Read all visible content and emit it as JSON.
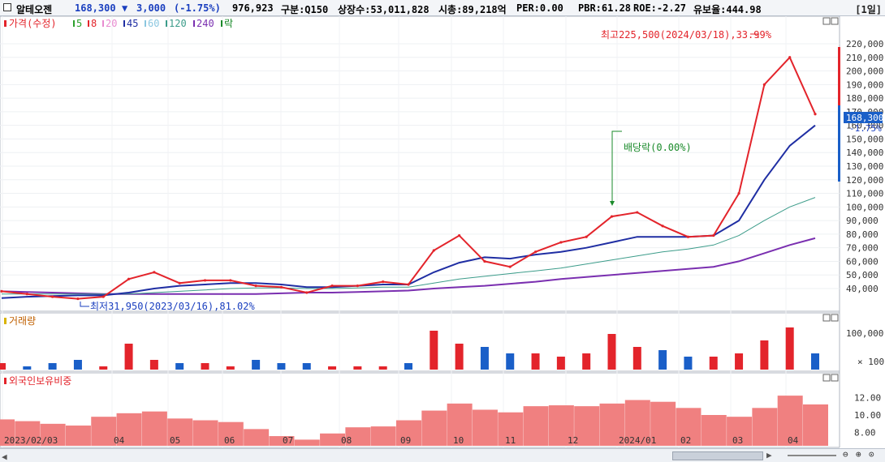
{
  "header": {
    "name": "알테오젠",
    "price": "168,300",
    "change_arrow": "▼",
    "change": "3,000",
    "change_pct": "(-1.75%)",
    "volume": "976,923",
    "market": "구분:Q150",
    "shares": "상장수:53,011,828",
    "mcap": "시총:89,218억",
    "per": "PER:0.00",
    "pbr": "PBR:61.28",
    "roe": "ROE:-2.27",
    "float": "유보율:444.98",
    "period": "[1일]"
  },
  "legend": {
    "price": "가격(수정)",
    "ma": [
      {
        "label": "5",
        "color": "#2ca02c"
      },
      {
        "label": "8",
        "color": "#e3242b"
      },
      {
        "label": "20",
        "color": "#e88bd0"
      },
      {
        "label": "45",
        "color": "#1f2ea3"
      },
      {
        "label": "60",
        "color": "#8bc7e0"
      },
      {
        "label": "120",
        "color": "#3c9c8a"
      },
      {
        "label": "240",
        "color": "#7a2fb0"
      }
    ],
    "dividend": "락"
  },
  "annotations": {
    "high": "최고225,500(2024/03/18),33.99%",
    "low": "최저31,950(2023/03/16),81.02%",
    "dividend": "배당락(0.00%)",
    "current_price": "168,300",
    "current_pct": "-1.75%"
  },
  "panels": {
    "volume_title": "거래량",
    "foreign_title": "외국인보유비중"
  },
  "colors": {
    "up": "#e3242b",
    "down": "#1a5fc8",
    "foreign_bar": "#f08080"
  },
  "chart_data": [
    {
      "type": "line",
      "panel": "price",
      "title": "가격(수정)",
      "y_ticks": [
        "220,000",
        "210,000",
        "200,000",
        "190,000",
        "180,000",
        "170,000",
        "160,000",
        "150,000",
        "140,000",
        "130,000",
        "120,000",
        "110,000",
        "100,000",
        "90,000",
        "80,000",
        "70,000",
        "60,000",
        "50,000",
        "40,000"
      ],
      "ylim": [
        31000,
        226000
      ],
      "x_ticks": [
        "2023/02/03",
        "04",
        "05",
        "06",
        "07",
        "08",
        "09",
        "10",
        "11",
        "12",
        "2024/01",
        "02",
        "03",
        "04"
      ],
      "x": [
        0,
        2,
        4,
        6,
        8,
        10,
        12,
        14,
        16,
        18,
        20,
        22,
        24,
        26,
        28,
        30,
        32,
        34,
        36,
        38,
        40,
        42,
        44,
        46,
        48,
        50,
        52,
        54,
        56,
        58,
        60,
        62,
        64
      ],
      "series": [
        {
          "name": "가격(수정)",
          "values": [
            38000,
            36000,
            34000,
            32500,
            34000,
            47000,
            52000,
            44000,
            46000,
            46000,
            42000,
            41000,
            37000,
            42000,
            42000,
            45000,
            43000,
            68000,
            79000,
            60000,
            56000,
            67000,
            74000,
            78000,
            93000,
            96000,
            86000,
            78000,
            79000,
            110000,
            190000,
            210000,
            168300
          ]
        },
        {
          "name": "45",
          "values": [
            33000,
            34000,
            34500,
            35000,
            35000,
            37000,
            40000,
            42000,
            43000,
            44000,
            44000,
            43000,
            41000,
            41000,
            42000,
            43000,
            43000,
            52000,
            59000,
            63000,
            62000,
            65000,
            67000,
            70000,
            74000,
            78000,
            78000,
            78000,
            79000,
            90000,
            120000,
            145000,
            160000
          ]
        },
        {
          "name": "120",
          "values": [
            36000,
            36000,
            36000,
            36000,
            36000,
            36000,
            37000,
            38000,
            39000,
            40000,
            40500,
            40500,
            40000,
            40000,
            40500,
            41000,
            41000,
            44000,
            47000,
            49000,
            51000,
            53000,
            55000,
            58000,
            61000,
            64000,
            67000,
            69000,
            72000,
            79000,
            90000,
            100000,
            107000
          ]
        },
        {
          "name": "240",
          "values": [
            38000,
            37500,
            37000,
            36500,
            36000,
            36000,
            36000,
            36000,
            36000,
            36000,
            36000,
            36500,
            37000,
            37000,
            37500,
            38000,
            38500,
            40000,
            41000,
            42000,
            43500,
            45000,
            47000,
            48500,
            50000,
            51500,
            53000,
            54500,
            56000,
            60000,
            66000,
            72000,
            77000
          ]
        }
      ]
    },
    {
      "type": "bar",
      "panel": "volume",
      "title": "거래량",
      "y_ticks": [
        "100,000",
        "100"
      ],
      "values": [
        2,
        1,
        2,
        3,
        1,
        8,
        3,
        2,
        2,
        1,
        3,
        2,
        2,
        1,
        1,
        1,
        2,
        12,
        8,
        7,
        5,
        5,
        4,
        5,
        11,
        7,
        6,
        4,
        4,
        5,
        9,
        13,
        5
      ]
    },
    {
      "type": "bar",
      "panel": "foreign",
      "title": "외국인보유비중",
      "y_ticks": [
        "12.00",
        "10.00",
        "8.00"
      ],
      "ylim": [
        6.5,
        13.5
      ],
      "values": [
        9.5,
        9.3,
        9.0,
        8.8,
        9.8,
        10.2,
        10.4,
        9.6,
        9.4,
        9.2,
        8.4,
        7.6,
        7.2,
        7.9,
        8.6,
        8.7,
        9.4,
        10.5,
        11.3,
        10.6,
        10.3,
        11.0,
        11.1,
        11.0,
        11.3,
        11.7,
        11.5,
        10.8,
        10.0,
        9.8,
        10.8,
        12.2,
        11.2
      ]
    }
  ]
}
